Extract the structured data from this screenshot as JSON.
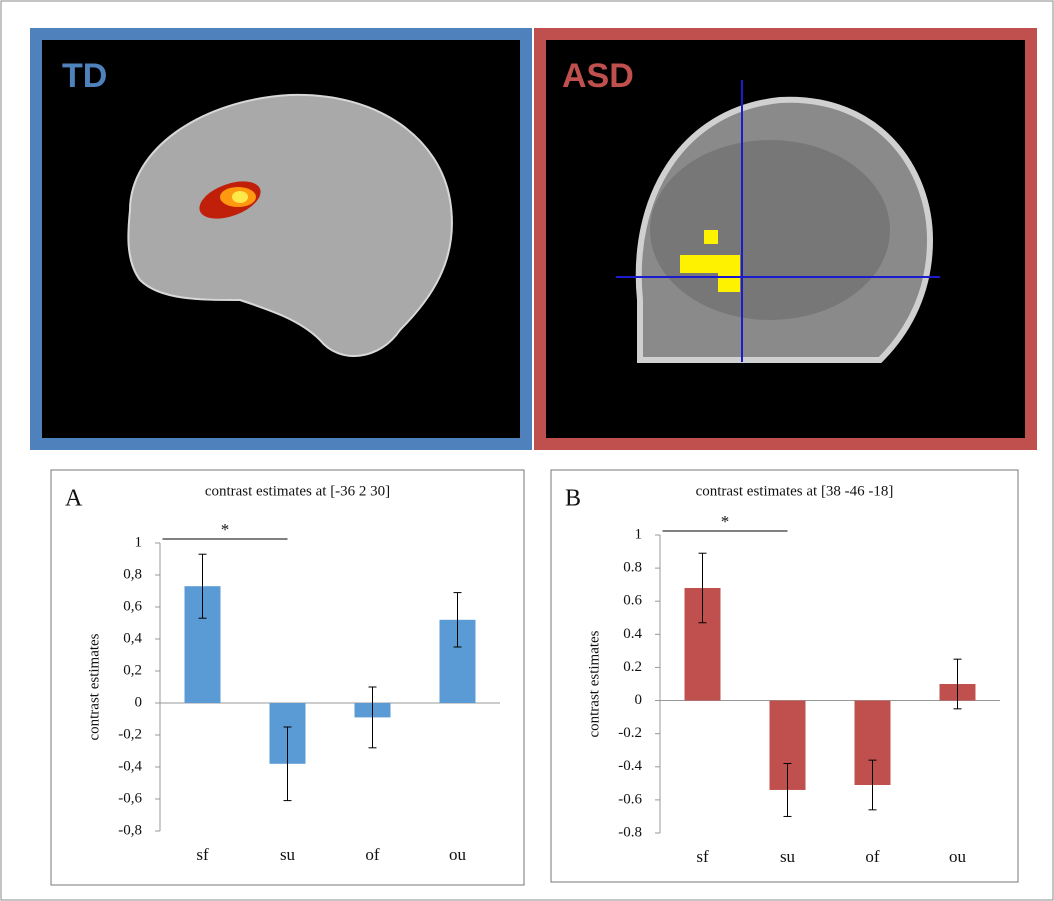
{
  "images": [
    {
      "label": "TD"
    },
    {
      "label": "ASD"
    }
  ],
  "chart_data": [
    {
      "type": "bar",
      "panel": "A",
      "title": "contrast estimates at [-36 2 30]",
      "y_label": "contrast estimates",
      "categories": [
        "sf",
        "su",
        "of",
        "ou"
      ],
      "values": [
        0.73,
        -0.38,
        -0.09,
        0.52
      ],
      "errors": [
        0.2,
        0.23,
        0.19,
        0.17
      ],
      "color": "#5b9bd5",
      "annotation": "*",
      "ylim": [
        -0.8,
        1
      ],
      "yticks": [
        {
          "value": -0.8,
          "label": "-0,8"
        },
        {
          "value": -0.6,
          "label": "-0,6"
        },
        {
          "value": -0.4,
          "label": "-0,4"
        },
        {
          "value": -0.2,
          "label": "-0,2"
        },
        0,
        {
          "value": 0.2,
          "label": "0,2"
        },
        {
          "value": 0.4,
          "label": "0,4"
        },
        {
          "value": 0.6,
          "label": "0,6"
        },
        {
          "value": 0.8,
          "label": "0,8"
        },
        1
      ]
    },
    {
      "type": "bar",
      "panel": "B",
      "title": "contrast estimates at [38 -46 -18]",
      "y_label": "contrast estimates",
      "categories": [
        "sf",
        "su",
        "of",
        "ou"
      ],
      "values": [
        0.68,
        -0.54,
        -0.51,
        0.1
      ],
      "errors": [
        0.21,
        0.16,
        0.15,
        0.15
      ],
      "color": "#c0504d",
      "annotation": "*",
      "ylim": [
        -0.8,
        1
      ],
      "yticks": [
        -0.8,
        -0.6,
        -0.4,
        -0.2,
        0,
        0.2,
        0.4,
        0.6,
        0.8,
        1
      ]
    }
  ]
}
